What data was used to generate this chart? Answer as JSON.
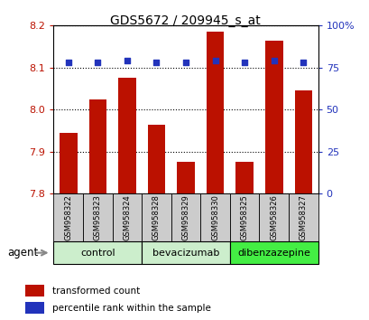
{
  "title": "GDS5672 / 209945_s_at",
  "samples": [
    "GSM958322",
    "GSM958323",
    "GSM958324",
    "GSM958328",
    "GSM958329",
    "GSM958330",
    "GSM958325",
    "GSM958326",
    "GSM958327"
  ],
  "red_values": [
    7.945,
    8.025,
    8.075,
    7.965,
    7.875,
    8.185,
    7.875,
    8.165,
    8.045
  ],
  "blue_values": [
    78,
    78,
    79,
    78,
    78,
    79,
    78,
    79,
    78
  ],
  "groups": [
    {
      "label": "control",
      "start": 0,
      "end": 3,
      "color": "#cceecc"
    },
    {
      "label": "bevacizumab",
      "start": 3,
      "end": 6,
      "color": "#cceecc"
    },
    {
      "label": "dibenzazepine",
      "start": 6,
      "end": 9,
      "color": "#44ee44"
    }
  ],
  "ylim_left": [
    7.8,
    8.2
  ],
  "ylim_right": [
    0,
    100
  ],
  "yticks_left": [
    7.8,
    7.9,
    8.0,
    8.1,
    8.2
  ],
  "yticks_right": [
    0,
    25,
    50,
    75,
    100
  ],
  "bar_color": "#bb1100",
  "dot_color": "#2233bb",
  "grid_color": "#000000",
  "sample_bg_color": "#cccccc",
  "legend_red": "transformed count",
  "legend_blue": "percentile rank within the sample",
  "agent_label": "agent"
}
